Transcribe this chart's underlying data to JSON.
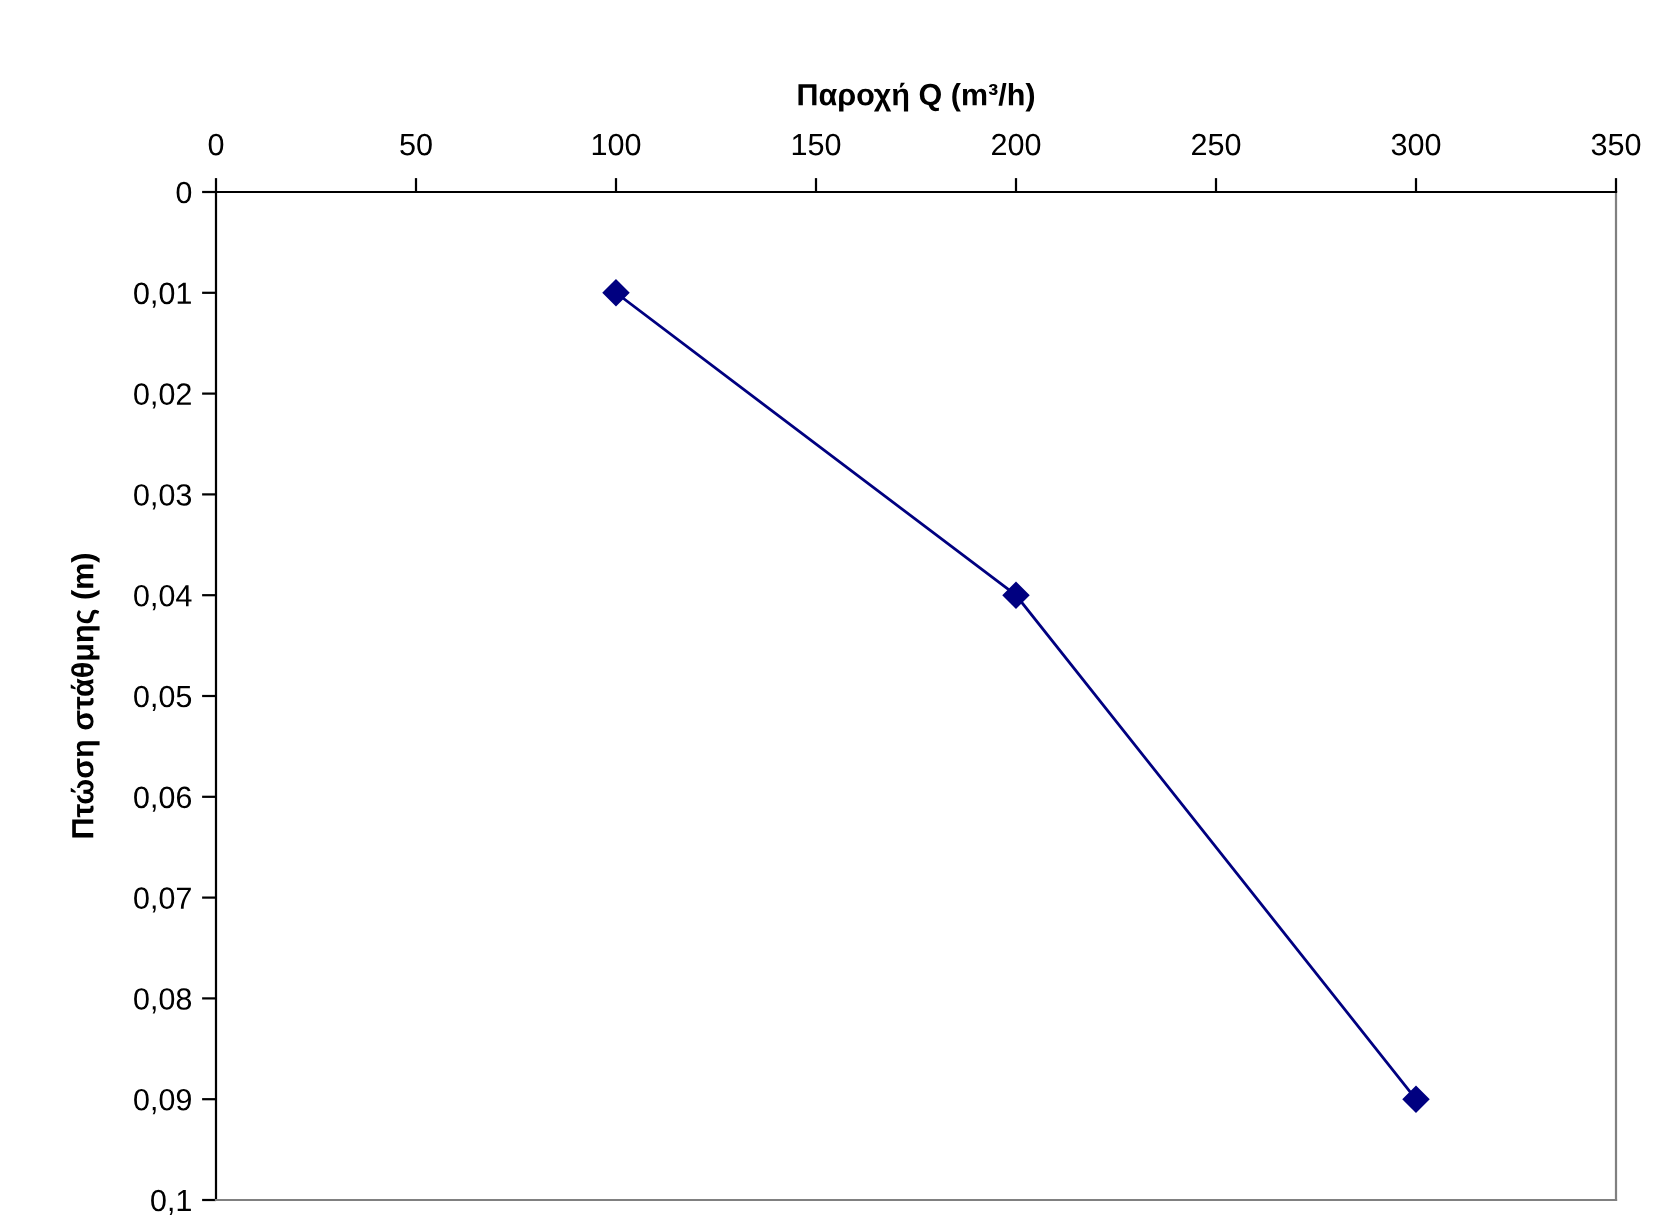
{
  "chart_data": {
    "type": "line",
    "xlabel": "Παροχή Q (m³/h)",
    "ylabel": "Πτώση στάθμης (m)",
    "x": [
      100,
      200,
      300
    ],
    "series": [
      {
        "color": "#000080",
        "values": [
          0.01,
          0.04,
          0.09
        ]
      }
    ],
    "marker": "diamond",
    "line_style": "solid",
    "grid": false,
    "xlim": [
      0,
      350
    ],
    "xticks": [
      0,
      50,
      100,
      150,
      200,
      250,
      300,
      350
    ],
    "ylim": [
      0.1,
      0
    ],
    "yticks": [
      0,
      {
        "value": 0.01,
        "label": "0,01"
      },
      {
        "value": 0.02,
        "label": "0,02"
      },
      {
        "value": 0.03,
        "label": "0,03"
      },
      {
        "value": 0.04,
        "label": "0,04"
      },
      {
        "value": 0.05,
        "label": "0,05"
      },
      {
        "value": 0.06,
        "label": "0,06"
      },
      {
        "value": 0.07,
        "label": "0,07"
      },
      {
        "value": 0.08,
        "label": "0,08"
      },
      {
        "value": 0.09,
        "label": "0,09"
      },
      {
        "value": 0.1,
        "label": "0,1"
      }
    ]
  }
}
